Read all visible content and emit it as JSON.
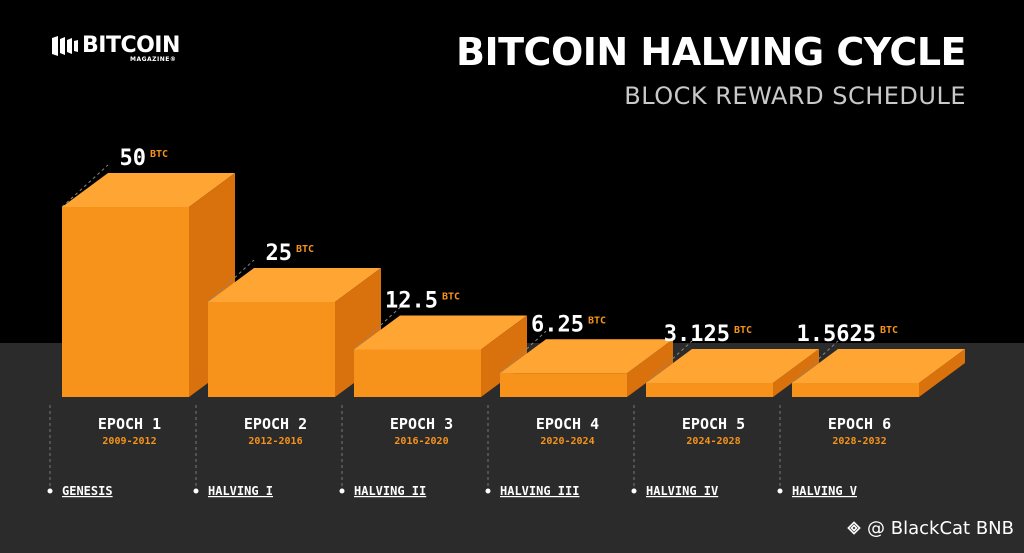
{
  "brand": {
    "name": "BITCOIN",
    "sub": "MAGAZINE®"
  },
  "header": {
    "title": "BITCOIN HALVING CYCLE",
    "subtitle": "BLOCK REWARD SCHEDULE"
  },
  "watermark": "@ BlackCat BNB",
  "colors": {
    "front": "#f7931a",
    "top": "#ffa533",
    "side": "#d9720c",
    "floor": "#2b2b2b",
    "accent": "#f7931a"
  },
  "chart_data": {
    "type": "bar",
    "title": "BITCOIN HALVING CYCLE",
    "subtitle": "BLOCK REWARD SCHEDULE",
    "unit": "BTC",
    "categories": [
      "EPOCH 1",
      "EPOCH 2",
      "EPOCH 3",
      "EPOCH 4",
      "EPOCH 5",
      "EPOCH 6"
    ],
    "periods": [
      "2009-2012",
      "2012-2016",
      "2016-2020",
      "2020-2024",
      "2024-2028",
      "2028-2032"
    ],
    "value_labels": [
      "50",
      "25",
      "12.5",
      "6.25",
      "3.125",
      "1.5625"
    ],
    "values": [
      50,
      25,
      12.5,
      6.25,
      3.125,
      1.5625
    ],
    "events": [
      "GENESIS",
      "HALVING I",
      "HALVING II",
      "HALVING III",
      "HALVING IV",
      "HALVING V"
    ]
  }
}
